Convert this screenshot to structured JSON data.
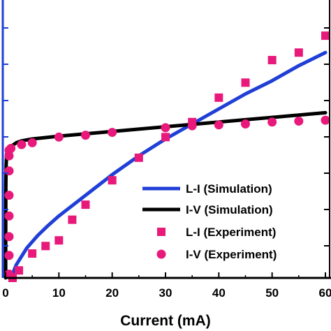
{
  "chart_data": {
    "type": "line",
    "title": "",
    "xlabel": "Current (mA)",
    "ylabel": "",
    "xlim": [
      0,
      60
    ],
    "xticks": [
      0,
      10,
      20,
      30,
      40,
      50,
      60
    ],
    "grid": false,
    "legend_position": "bottom-right",
    "colors": {
      "li_simulation": "#1f3fd6",
      "iv_simulation": "#000000",
      "li_experiment": "#e8197a",
      "iv_experiment": "#e8197a",
      "left_axis": "#1f3fd6"
    },
    "series": [
      {
        "name": "L-I (Simulation)",
        "kind": "line",
        "x": [
          1,
          2,
          4,
          6,
          8,
          10,
          15,
          20,
          25,
          30,
          35,
          40,
          45,
          50,
          55,
          60
        ],
        "y": [
          0,
          7,
          16,
          22.5,
          28,
          33,
          44,
          55,
          65,
          74,
          82,
          90,
          98,
          105,
          113,
          120
        ]
      },
      {
        "name": "I-V (Simulation)",
        "kind": "line",
        "x": [
          0.01,
          0.02,
          0.05,
          0.1,
          0.2,
          0.5,
          1,
          2,
          3,
          5,
          10,
          20,
          30,
          40,
          50,
          60
        ],
        "y": [
          0,
          30,
          50,
          60,
          66,
          69,
          70,
          72,
          73,
          74,
          75.5,
          78,
          80.5,
          83,
          85.5,
          88
        ]
      },
      {
        "name": "L-I (Experiment)",
        "kind": "square-markers",
        "x": [
          1,
          2.5,
          5,
          7.5,
          10,
          12.5,
          15,
          20,
          25,
          30,
          35,
          40,
          45,
          50,
          55,
          60
        ],
        "y": [
          0,
          4,
          13,
          17,
          20,
          31,
          39,
          52,
          64,
          75,
          83,
          96,
          104,
          116,
          120,
          129
        ]
      },
      {
        "name": "I-V (Experiment)",
        "kind": "circle-markers",
        "x": [
          0,
          0,
          0,
          0,
          0,
          0,
          0,
          0,
          1,
          3,
          5,
          10,
          15,
          20,
          30,
          35,
          40,
          45,
          50,
          55,
          60
        ],
        "y": [
          2,
          12,
          22,
          33,
          44,
          57,
          65,
          68,
          69,
          71,
          72,
          75,
          76,
          77.5,
          80,
          81,
          81.5,
          82,
          83,
          83.5,
          84
        ]
      }
    ],
    "y_scale_note_hidden": true
  }
}
